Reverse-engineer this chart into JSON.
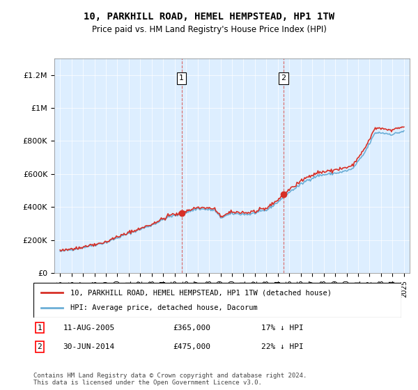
{
  "title": "10, PARKHILL ROAD, HEMEL HEMPSTEAD, HP1 1TW",
  "subtitle": "Price paid vs. HM Land Registry's House Price Index (HPI)",
  "legend_line1": "10, PARKHILL ROAD, HEMEL HEMPSTEAD, HP1 1TW (detached house)",
  "legend_line2": "HPI: Average price, detached house, Dacorum",
  "transaction1_label": "1",
  "transaction1_date": "11-AUG-2005",
  "transaction1_price": "£365,000",
  "transaction1_hpi": "17% ↓ HPI",
  "transaction2_label": "2",
  "transaction2_date": "30-JUN-2014",
  "transaction2_price": "£475,000",
  "transaction2_hpi": "22% ↓ HPI",
  "footer": "Contains HM Land Registry data © Crown copyright and database right 2024.\nThis data is licensed under the Open Government Licence v3.0.",
  "hpi_color": "#6baed6",
  "price_color": "#d73027",
  "transaction_vline_color": "#d73027",
  "background_color": "#ddeeff",
  "ylim_min": 0,
  "ylim_max": 1300000,
  "ylabel_ticks": [
    0,
    200000,
    400000,
    600000,
    800000,
    1000000,
    1200000
  ],
  "ylabel_labels": [
    "£0",
    "£200K",
    "£400K",
    "£600K",
    "£800K",
    "£1M",
    "£1.2M"
  ],
  "x_start_year": 1995,
  "x_end_year": 2025,
  "transaction1_x": 2005.6,
  "transaction2_x": 2014.5,
  "transaction1_price_val": 365000,
  "transaction2_price_val": 475000
}
